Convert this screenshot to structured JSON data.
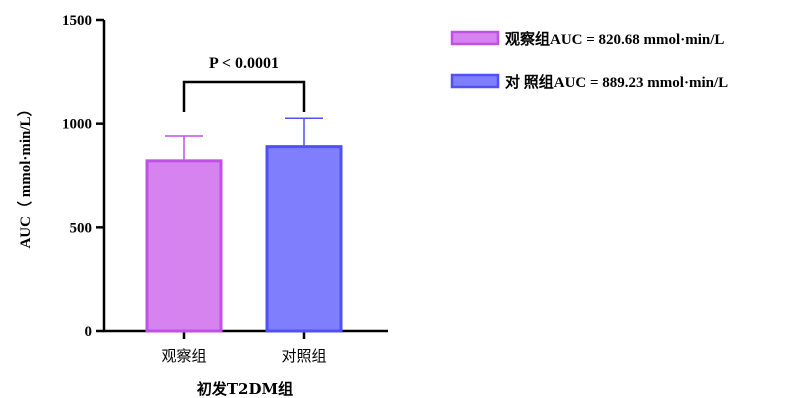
{
  "chart_data": {
    "type": "bar",
    "categories": [
      "观察组",
      "对照组"
    ],
    "values": [
      820.68,
      889.23
    ],
    "error_plus": [
      120,
      137
    ],
    "colors": {
      "fill": [
        "#d683ef",
        "#7f7ffd"
      ],
      "stroke": [
        "#c150e6",
        "#5050f5"
      ]
    },
    "xlabel": "初发T2DM组",
    "ylabel": "AUC（ mmol·min/L）",
    "ylim": [
      0,
      1500
    ],
    "yticks": [
      0,
      500,
      1000,
      1500
    ],
    "yticks_labels": [
      "0",
      "500",
      "1000",
      "1500"
    ],
    "significance": {
      "text": "P < 0.0001",
      "between": [
        0,
        1
      ]
    },
    "legend": {
      "position": "top-right",
      "entries": [
        "观察组AUC = 820.68 mmol·min/L",
        "对 照组AUC = 889.23 mmol·min/L"
      ]
    },
    "grid": false
  }
}
